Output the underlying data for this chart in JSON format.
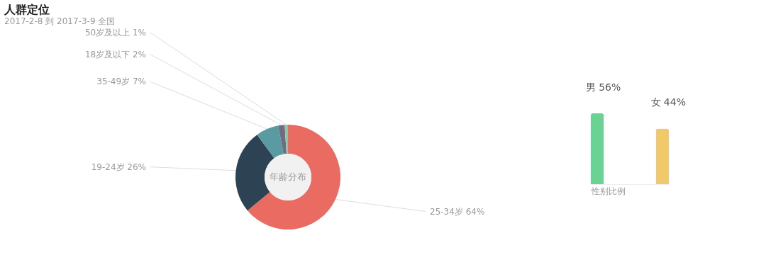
{
  "chart_data": [
    {
      "type": "donut",
      "title": "人群定位",
      "subtitle": "2017-2-8 到 2017-3-9   全国",
      "annotations": [
        "年龄分布"
      ],
      "categories": [
        "25-34岁",
        "19-24岁",
        "35-49岁",
        "18岁及以下",
        "50岁及以上"
      ],
      "values": [
        64,
        26,
        7,
        2,
        1
      ],
      "colors": [
        "#e96b62",
        "#2d4354",
        "#5a9aa2",
        "#726c82",
        "#8cc7a5"
      ],
      "value_labels": [
        "64%",
        "26%",
        "7%",
        "2%",
        "1%"
      ],
      "legend": false
    },
    {
      "type": "bar",
      "xlabel": "性别比例",
      "categories": [
        "男",
        "女"
      ],
      "values": [
        56,
        44
      ],
      "colors": [
        "#6ad393",
        "#f2c96a"
      ],
      "value_labels": [
        "56%",
        "44%"
      ],
      "tick_labels": false
    }
  ]
}
